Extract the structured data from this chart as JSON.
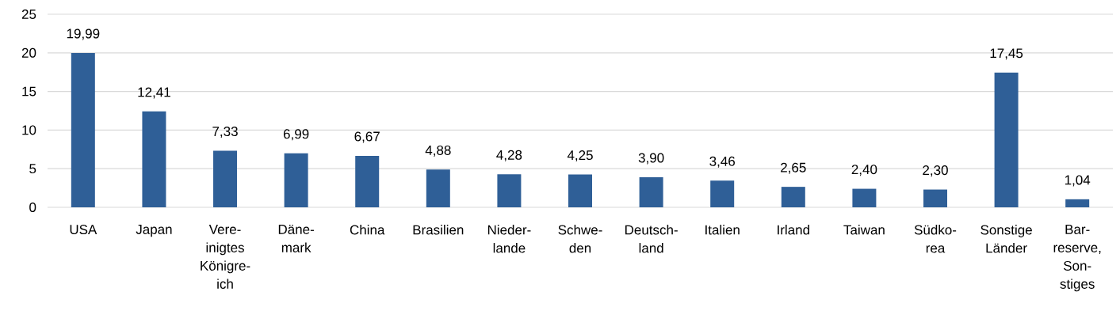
{
  "chart_data": {
    "type": "bar",
    "categories": [
      "USA",
      "Japan",
      "Vere- inigtes Königre- ich",
      "Däne- mark",
      "China",
      "Brasilien",
      "Nieder- lande",
      "Schwe- den",
      "Deutsch- land",
      "Italien",
      "Irland",
      "Taiwan",
      "Südko- rea",
      "Sonstige Länder",
      "Bar- reserve, Son- stiges"
    ],
    "values": [
      19.99,
      12.41,
      7.33,
      6.99,
      6.67,
      4.88,
      4.28,
      4.25,
      3.9,
      3.46,
      2.65,
      2.4,
      2.3,
      17.45,
      1.04
    ],
    "value_labels": [
      "19,99",
      "12,41",
      "7,33",
      "6,99",
      "6,67",
      "4,88",
      "4,28",
      "4,25",
      "3,90",
      "3,46",
      "2,65",
      "2,40",
      "2,30",
      "17,45",
      "1,04"
    ],
    "color": "#2f5f97",
    "ylim": [
      0,
      25
    ],
    "yticks": [
      0,
      5,
      10,
      15,
      20,
      25
    ],
    "grid": "y"
  }
}
